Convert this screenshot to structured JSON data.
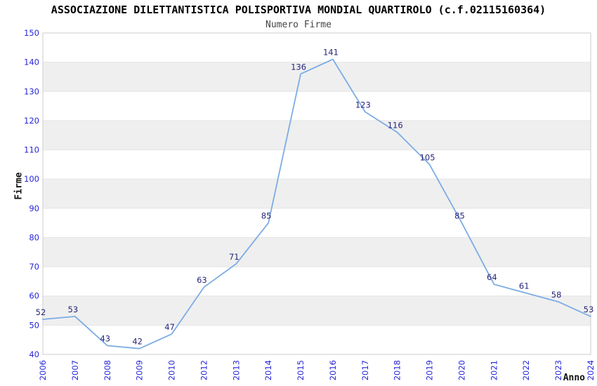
{
  "header": {
    "title": "ASSOCIAZIONE DILETTANTISTICA POLISPORTIVA MONDIAL QUARTIROLO (c.f.02115160364)",
    "subtitle": "Numero Firme"
  },
  "chart_data": {
    "type": "line",
    "title": "ASSOCIAZIONE DILETTANTISTICA POLISPORTIVA MONDIAL QUARTIROLO (c.f.02115160364)",
    "subtitle": "Numero Firme",
    "xlabel": "Anno",
    "ylabel": "Firme",
    "categories": [
      "2006",
      "2007",
      "2008",
      "2009",
      "2010",
      "2012",
      "2013",
      "2014",
      "2015",
      "2016",
      "2017",
      "2018",
      "2019",
      "2020",
      "2021",
      "2022",
      "2023",
      "2024"
    ],
    "values": [
      52,
      53,
      43,
      42,
      47,
      63,
      71,
      85,
      136,
      141,
      123,
      116,
      105,
      85,
      64,
      61,
      58,
      53
    ],
    "series": [
      {
        "name": "Numero Firme",
        "values": [
          52,
          53,
          43,
          42,
          47,
          63,
          71,
          85,
          136,
          141,
          123,
          116,
          105,
          85,
          64,
          61,
          58,
          53
        ]
      }
    ],
    "ylim": [
      40,
      150
    ],
    "ytick_step": 10,
    "yticks": [
      40,
      50,
      60,
      70,
      80,
      90,
      100,
      110,
      120,
      130,
      140,
      150
    ],
    "grid": "horizontal-with-alternating-bands",
    "legend_position": "none",
    "point_labels_visible": true,
    "colors": {
      "line": "#7cace4",
      "tick_label": "#2626d8",
      "point_label": "#26267a",
      "band": "#efefef",
      "gridline": "#e4e4e4",
      "plot_border": "#d4d4d4",
      "title": "#000000",
      "subtitle": "#444444",
      "axis_title": "#111111",
      "background": "#ffffff"
    }
  }
}
